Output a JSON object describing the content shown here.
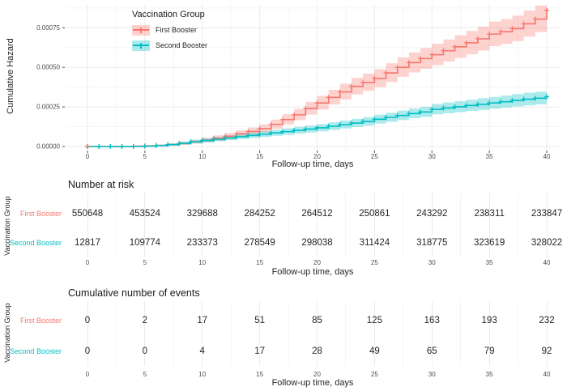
{
  "colors": {
    "first_booster": "#F8766D",
    "second_booster": "#00BFC4",
    "first_booster_fill": "rgba(248,118,109,0.32)",
    "second_booster_fill": "rgba(0,191,196,0.32)",
    "grid_major": "#EBEBEB",
    "grid_minor": "#F5F5F5",
    "tick_text": "#4d4d4d",
    "text": "#262626"
  },
  "chart_data": [
    {
      "type": "line",
      "subtype": "step-cumulative-hazard-with-ci",
      "title": "",
      "xlabel": "Follow-up time, days",
      "ylabel": "Cumulative Hazard",
      "xlim": [
        0,
        40
      ],
      "ylim": [
        0,
        0.0009
      ],
      "x_ticks": [
        0,
        5,
        10,
        15,
        20,
        25,
        30,
        35,
        40
      ],
      "y_tick_values": [
        0,
        0.00025,
        0.0005,
        0.00075
      ],
      "y_tick_labels": [
        "0.00000",
        "0.00025",
        "0.00050",
        "0.00075"
      ],
      "grid": true,
      "legend_title": "Vaccination Group",
      "legend_position": "top-left-inside",
      "marks": "plus-censor-marks-daily",
      "series": [
        {
          "name": "First Booster",
          "color": "#F8766D",
          "fill": "rgba(248,118,109,0.32)",
          "points": [
            [
              0,
              0,
              0,
              0
            ],
            [
              1,
              0,
              0,
              0
            ],
            [
              2,
              0,
              0,
              0
            ],
            [
              3,
              0,
              0,
              0
            ],
            [
              4,
              2e-06,
              0,
              5e-06
            ],
            [
              5,
              4e-06,
              1e-06,
              8e-06
            ],
            [
              6,
              7e-06,
              2e-06,
              1.3e-05
            ],
            [
              7,
              1.2e-05,
              5e-06,
              2e-05
            ],
            [
              8,
              2e-05,
              1e-05,
              3e-05
            ],
            [
              9,
              3e-05,
              1.8e-05,
              4.3e-05
            ],
            [
              10,
              4e-05,
              2.6e-05,
              5.5e-05
            ],
            [
              11,
              5.2e-05,
              3.6e-05,
              7e-05
            ],
            [
              12,
              6.5e-05,
              4.7e-05,
              8.5e-05
            ],
            [
              13,
              8e-05,
              6e-05,
              0.000102
            ],
            [
              14,
              9.5e-05,
              7.3e-05,
              0.00012
            ],
            [
              15,
              0.000112,
              8.8e-05,
              0.00014
            ],
            [
              16,
              0.00014,
              0.000112,
              0.00017
            ],
            [
              17,
              0.00017,
              0.000139,
              0.000204
            ],
            [
              18,
              0.0002,
              0.000166,
              0.000238
            ],
            [
              19,
              0.00024,
              0.000202,
              0.000282
            ],
            [
              20,
              0.000275,
              0.000233,
              0.00032
            ],
            [
              21,
              0.00031,
              0.000265,
              0.000358
            ],
            [
              22,
              0.000345,
              0.000297,
              0.000396
            ],
            [
              23,
              0.00038,
              0.000329,
              0.000434
            ],
            [
              24,
              0.000405,
              0.000352,
              0.000461
            ],
            [
              25,
              0.00043,
              0.000375,
              0.000489
            ],
            [
              26,
              0.000465,
              0.000407,
              0.000526
            ],
            [
              27,
              0.0005,
              0.00044,
              0.000563
            ],
            [
              28,
              0.00053,
              0.000468,
              0.000595
            ],
            [
              29,
              0.000555,
              0.000491,
              0.000622
            ],
            [
              30,
              0.00058,
              0.000514,
              0.000649
            ],
            [
              31,
              0.000605,
              0.000537,
              0.000676
            ],
            [
              32,
              0.00063,
              0.00056,
              0.000703
            ],
            [
              33,
              0.000655,
              0.000583,
              0.00073
            ],
            [
              34,
              0.00068,
              0.000606,
              0.000757
            ],
            [
              35,
              0.00071,
              0.000634,
              0.000789
            ],
            [
              36,
              0.000725,
              0.000648,
              0.000805
            ],
            [
              37,
              0.000745,
              0.000666,
              0.000827
            ],
            [
              38,
              0.000775,
              0.000694,
              0.000859
            ],
            [
              39,
              0.000805,
              0.000722,
              0.000891
            ],
            [
              40,
              0.00086,
              0.000775,
              0.000948
            ]
          ]
        },
        {
          "name": "Second Booster",
          "color": "#00BFC4",
          "fill": "rgba(0,191,196,0.32)",
          "points": [
            [
              0,
              0,
              0,
              0
            ],
            [
              1,
              0,
              0,
              0
            ],
            [
              2,
              0,
              0,
              0
            ],
            [
              3,
              0,
              0,
              0
            ],
            [
              4,
              0,
              0,
              0
            ],
            [
              5,
              2e-06,
              0,
              5e-06
            ],
            [
              6,
              6e-06,
              2e-06,
              1.2e-05
            ],
            [
              7,
              1.2e-05,
              6e-06,
              2e-05
            ],
            [
              8,
              2e-05,
              1.2e-05,
              3e-05
            ],
            [
              9,
              3e-05,
              2e-05,
              4.2e-05
            ],
            [
              10,
              3.8e-05,
              2.6e-05,
              5.2e-05
            ],
            [
              11,
              4.6e-05,
              3.3e-05,
              6.1e-05
            ],
            [
              12,
              5.4e-05,
              4e-05,
              7e-05
            ],
            [
              13,
              6.2e-05,
              4.7e-05,
              7.9e-05
            ],
            [
              14,
              7e-05,
              5.4e-05,
              8.8e-05
            ],
            [
              15,
              7.8e-05,
              6.1e-05,
              9.7e-05
            ],
            [
              16,
              8.6e-05,
              6.8e-05,
              0.000106
            ],
            [
              17,
              9.4e-05,
              7.5e-05,
              0.000115
            ],
            [
              18,
              0.000102,
              8.2e-05,
              0.000124
            ],
            [
              19,
              0.00011,
              8.9e-05,
              0.000133
            ],
            [
              20,
              0.000118,
              9.6e-05,
              0.000142
            ],
            [
              21,
              0.000128,
              0.000105,
              0.000153
            ],
            [
              22,
              0.000138,
              0.000114,
              0.000164
            ],
            [
              23,
              0.000148,
              0.000123,
              0.000175
            ],
            [
              24,
              0.000158,
              0.000132,
              0.000186
            ],
            [
              25,
              0.000172,
              0.000145,
              0.000201
            ],
            [
              26,
              0.000184,
              0.000156,
              0.000214
            ],
            [
              27,
              0.000196,
              0.000167,
              0.000227
            ],
            [
              28,
              0.000208,
              0.000178,
              0.00024
            ],
            [
              29,
              0.000218,
              0.000187,
              0.000251
            ],
            [
              30,
              0.000235,
              0.000203,
              0.000269
            ],
            [
              31,
              0.000243,
              0.00021,
              0.000278
            ],
            [
              32,
              0.000251,
              0.000217,
              0.000287
            ],
            [
              33,
              0.000259,
              0.000224,
              0.000296
            ],
            [
              34,
              0.000267,
              0.000231,
              0.000305
            ],
            [
              35,
              0.000275,
              0.000239,
              0.000313
            ],
            [
              36,
              0.000283,
              0.000246,
              0.000322
            ],
            [
              37,
              0.000291,
              0.000253,
              0.000331
            ],
            [
              38,
              0.000299,
              0.00026,
              0.00034
            ],
            [
              39,
              0.000305,
              0.000266,
              0.000346
            ],
            [
              40,
              0.000315,
              0.000275,
              0.000357
            ]
          ]
        }
      ]
    },
    {
      "type": "table",
      "title": "Number at risk",
      "ylabel": "Vaccination Group",
      "xlabel": "Follow-up time, days",
      "x": [
        0,
        5,
        10,
        15,
        20,
        25,
        30,
        35,
        40
      ],
      "rows": [
        {
          "name": "First Booster",
          "color": "#F8766D",
          "values": [
            "550648",
            "453524",
            "329688",
            "284252",
            "264512",
            "250861",
            "243292",
            "238311",
            "233847"
          ]
        },
        {
          "name": "Second Booster",
          "color": "#00BFC4",
          "values": [
            "12817",
            "109774",
            "233373",
            "278549",
            "298038",
            "311424",
            "318775",
            "323619",
            "328022"
          ]
        }
      ]
    },
    {
      "type": "table",
      "title": "Cumulative number of events",
      "ylabel": "Vaccination Group",
      "xlabel": "Follow-up time, days",
      "x": [
        0,
        5,
        10,
        15,
        20,
        25,
        30,
        35,
        40
      ],
      "rows": [
        {
          "name": "First Booster",
          "color": "#F8766D",
          "values": [
            "0",
            "2",
            "17",
            "51",
            "85",
            "125",
            "163",
            "193",
            "232"
          ]
        },
        {
          "name": "Second Booster",
          "color": "#00BFC4",
          "values": [
            "0",
            "0",
            "4",
            "17",
            "28",
            "49",
            "65",
            "79",
            "92"
          ]
        }
      ]
    }
  ]
}
